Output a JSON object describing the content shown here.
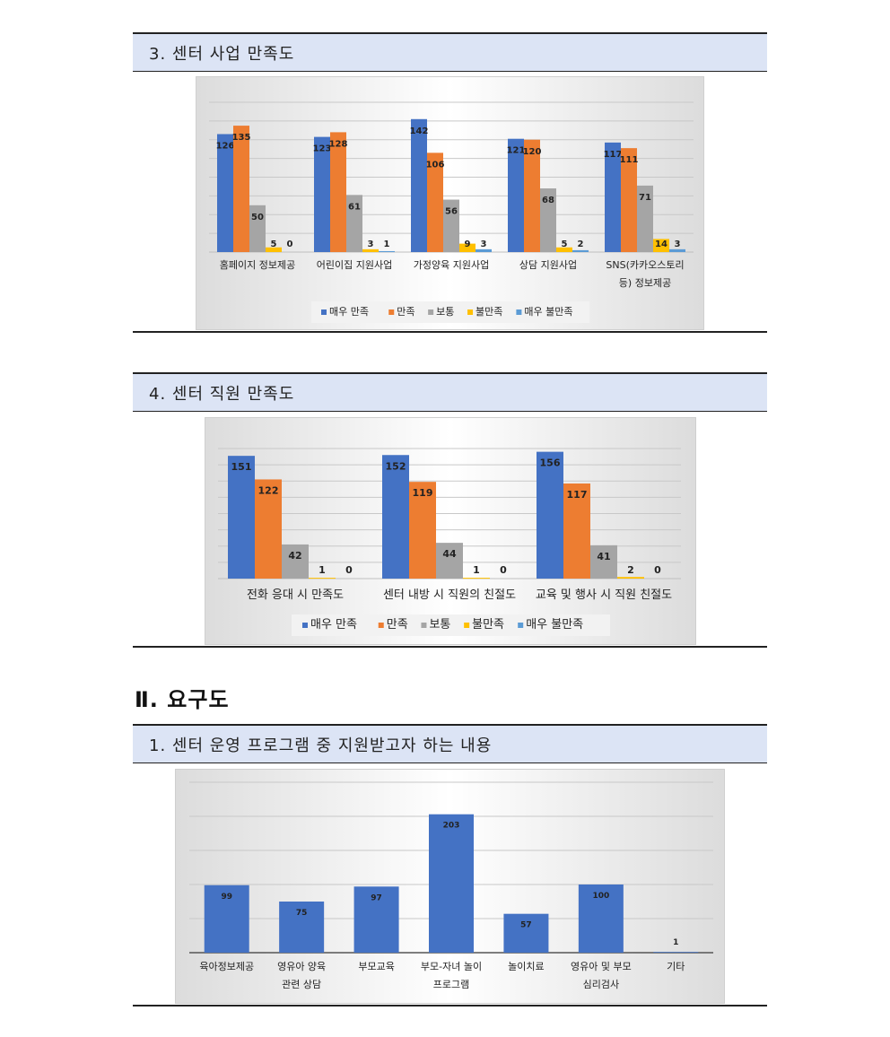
{
  "sections": {
    "s3_title": "3. 센터 사업 만족도",
    "s4_title": "4. 센터 직원 만족도",
    "part2_title": "Ⅱ. 요구도",
    "s21_title": "1. 센터 운영 프로그램 중 지원받고자 하는 내용"
  },
  "colors": {
    "매우 만족": "#4472c4",
    "만족": "#ed7d31",
    "보통": "#a5a5a5",
    "불만족": "#ffc000",
    "매우 불만족": "#5b9bd5"
  },
  "chart_data": [
    {
      "type": "bar",
      "title": "",
      "categories": [
        "홈페이지 정보제공",
        "어린이집 지원사업",
        "가정양육 지원사업",
        "상담 지원사업",
        "SNS(카카오스토리 등) 정보제공"
      ],
      "category_lines": [
        [
          "홈페이지 정보제공"
        ],
        [
          "어린이집 지원사업"
        ],
        [
          "가정양육 지원사업"
        ],
        [
          "상담 지원사업"
        ],
        [
          "SNS(카카오스토리",
          "등) 정보제공"
        ]
      ],
      "series": [
        {
          "name": "매우 만족",
          "values": [
            126,
            123,
            142,
            121,
            117
          ]
        },
        {
          "name": "만족",
          "values": [
            135,
            128,
            106,
            120,
            111
          ]
        },
        {
          "name": "보통",
          "values": [
            50,
            61,
            56,
            68,
            71
          ]
        },
        {
          "name": "불만족",
          "values": [
            5,
            3,
            9,
            5,
            14
          ]
        },
        {
          "name": "매우 불만족",
          "values": [
            0,
            1,
            3,
            2,
            3
          ]
        }
      ],
      "ylim": [
        0,
        160
      ],
      "grid": true,
      "legend": "bottom"
    },
    {
      "type": "bar",
      "title": "",
      "categories": [
        "전화 응대 시 만족도",
        "센터 내방 시 직원의 친절도",
        "교육 및 행사 시 직원 친절도"
      ],
      "category_lines": [
        [
          "전화 응대 시 만족도"
        ],
        [
          "센터 내방 시 직원의 친절도"
        ],
        [
          "교육 및 행사 시 직원 친절도"
        ]
      ],
      "series": [
        {
          "name": "매우 만족",
          "values": [
            151,
            152,
            156
          ]
        },
        {
          "name": "만족",
          "values": [
            122,
            119,
            117
          ]
        },
        {
          "name": "보통",
          "values": [
            42,
            44,
            41
          ]
        },
        {
          "name": "불만족",
          "values": [
            1,
            1,
            2
          ]
        },
        {
          "name": "매우 불만족",
          "values": [
            0,
            0,
            0
          ]
        }
      ],
      "ylim": [
        0,
        160
      ],
      "grid": true,
      "legend": "bottom"
    },
    {
      "type": "bar",
      "title": "",
      "categories": [
        "육아정보제공",
        "영유아 양육 관련 상담",
        "부모교육",
        "부모-자녀 놀이 프로그램",
        "놀이치료",
        "영유아 및 부모 심리검사",
        "기타"
      ],
      "category_lines": [
        [
          "육아정보제공"
        ],
        [
          "영유아 양육",
          "관련 상담"
        ],
        [
          "부모교육"
        ],
        [
          "부모-자녀 놀이",
          "프로그램"
        ],
        [
          "놀이치료"
        ],
        [
          "영유아 및 부모",
          "심리검사"
        ],
        [
          "기타"
        ]
      ],
      "values": [
        99,
        75,
        97,
        203,
        57,
        100,
        1
      ],
      "ylim": [
        0,
        250
      ],
      "grid": true,
      "legend": "none"
    }
  ]
}
